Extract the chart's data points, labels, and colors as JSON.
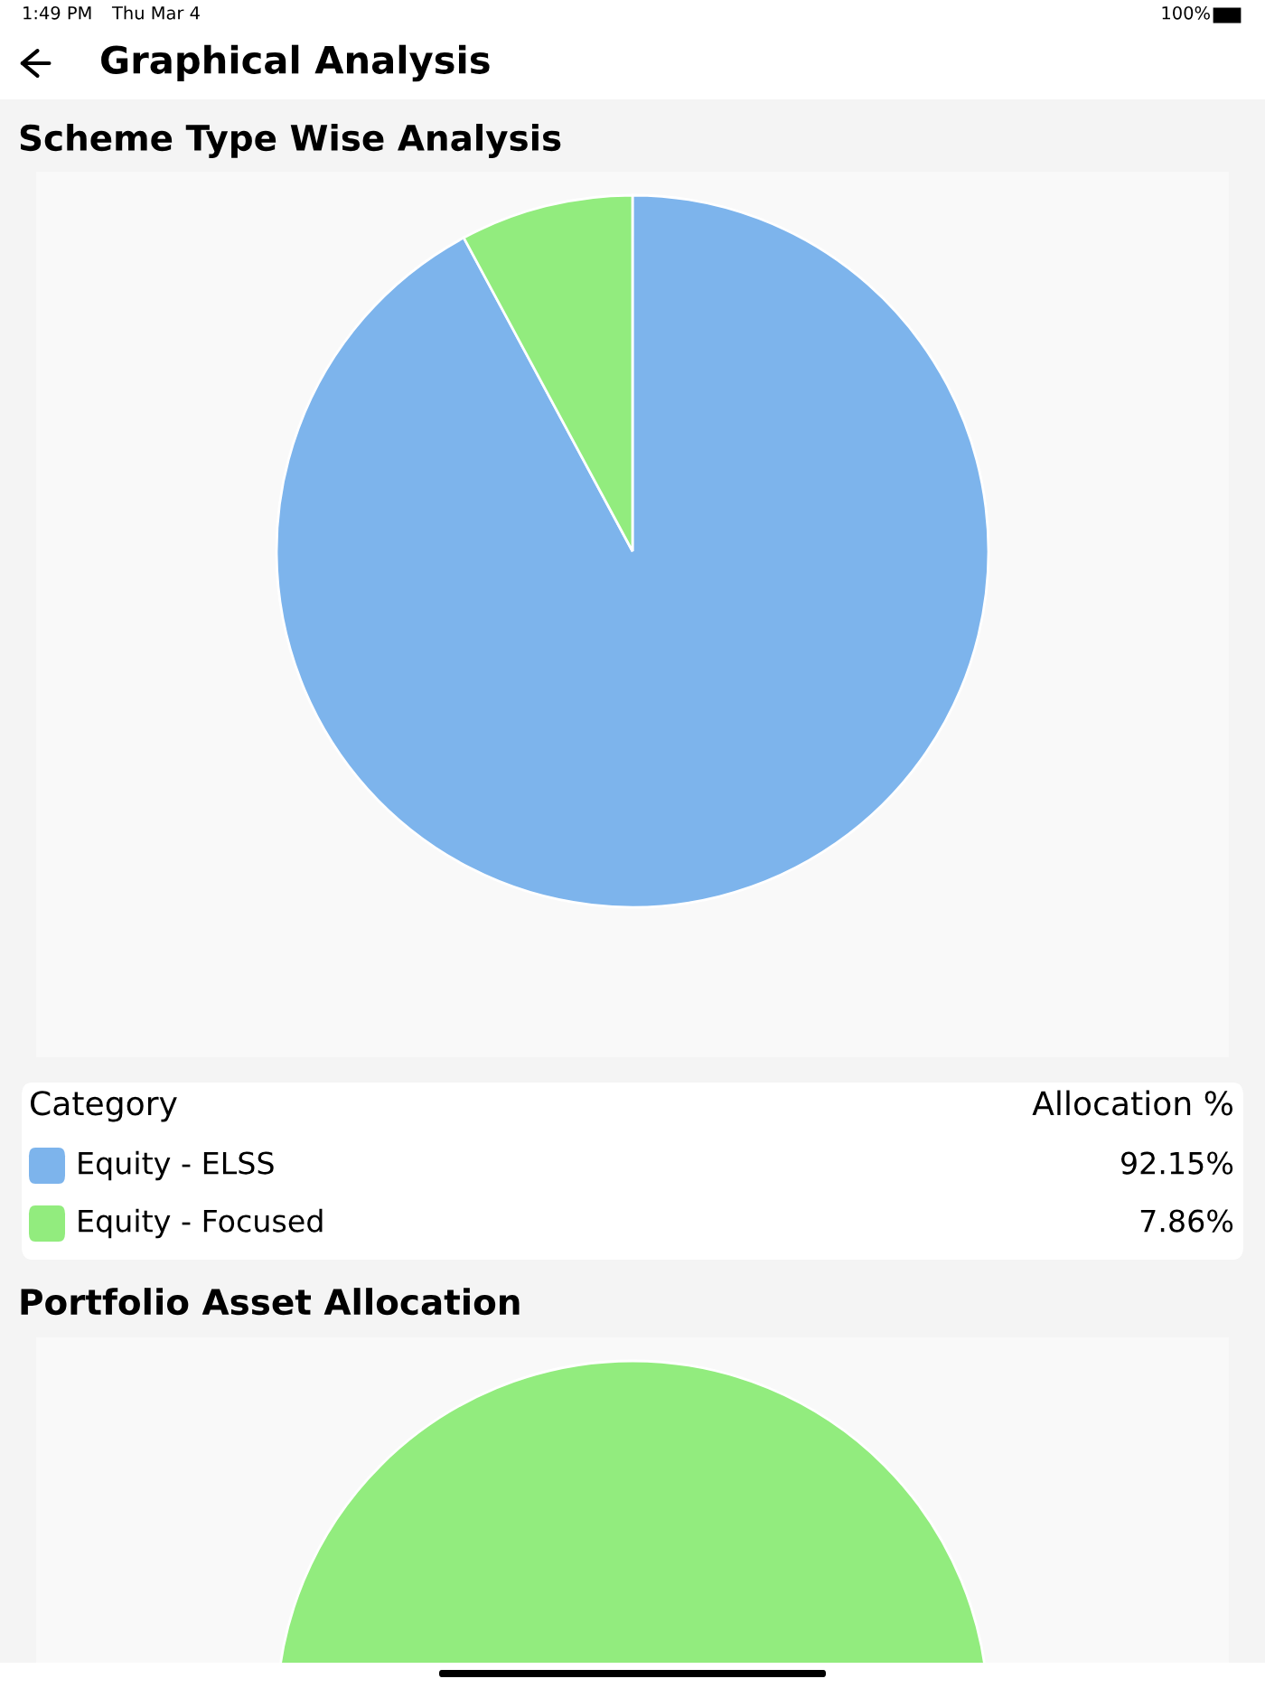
{
  "chart_data": [
    {
      "type": "pie",
      "title": "Scheme Type Wise Analysis",
      "categories": [
        "Equity - ELSS",
        "Equity - Focused"
      ],
      "values": [
        92.15,
        7.86
      ],
      "colors": [
        "#7db4ec",
        "#92ec7e"
      ],
      "legend_title": "Category",
      "value_labels": [
        "92.15%",
        "7.86%"
      ],
      "legend": "bottom",
      "annotations": [
        "1:49 PM",
        "Thu Mar 4",
        "100%",
        "Graphical Analysis",
        "Allocation %"
      ]
    },
    {
      "type": "pie",
      "title": "Portfolio Asset Allocation",
      "categories": [
        null
      ],
      "values": [
        100
      ],
      "colors": [
        "#92ec7e"
      ],
      "legend": false
    }
  ]
}
